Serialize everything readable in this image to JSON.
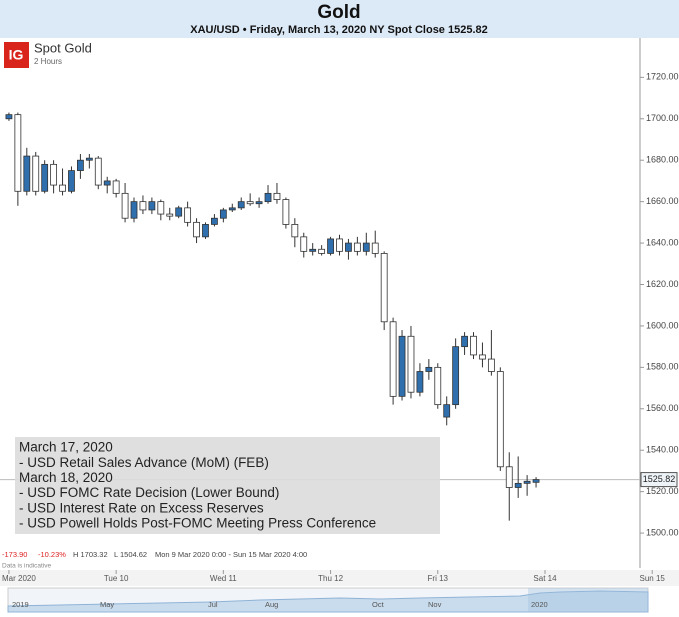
{
  "header": {
    "title": "Gold",
    "subtitle": "XAU/USD • Friday, March 13, 2020 NY Spot Close 1525.82"
  },
  "chart_data": {
    "type": "candlestick",
    "title": "Spot Gold",
    "subtitle": "2 Hours",
    "logo": "IG",
    "x": [
      0,
      2,
      4,
      6,
      8,
      10,
      12,
      14,
      16,
      18,
      20,
      22,
      24,
      26,
      28,
      30,
      32,
      34,
      36,
      38,
      40,
      42,
      44,
      46,
      48,
      50,
      52,
      54,
      56,
      58,
      60,
      62,
      64,
      66,
      68,
      70,
      72,
      74,
      76,
      78,
      80,
      82,
      84,
      86,
      88,
      90,
      92,
      94,
      96,
      98,
      100,
      102,
      104,
      106,
      108,
      110,
      112,
      114,
      116,
      118
    ],
    "open": [
      1700,
      1702,
      1665,
      1682,
      1665,
      1678,
      1668,
      1665,
      1675,
      1680,
      1681,
      1668,
      1670,
      1664,
      1652,
      1660,
      1656,
      1660,
      1654,
      1653,
      1657,
      1650,
      1643,
      1649,
      1652,
      1656,
      1657,
      1660,
      1659,
      1660,
      1664,
      1661,
      1649,
      1643,
      1636,
      1637,
      1635,
      1642,
      1636,
      1640,
      1636,
      1640,
      1635,
      1602,
      1566,
      1595,
      1568,
      1578,
      1580,
      1556,
      1562,
      1590,
      1595,
      1586,
      1584,
      1578,
      1532,
      1522,
      1524,
      1524.5
    ],
    "high": [
      1703,
      1703,
      1686,
      1684,
      1680,
      1680,
      1676,
      1677,
      1683,
      1683,
      1682,
      1672,
      1671,
      1669,
      1662,
      1663,
      1662,
      1661,
      1657,
      1658,
      1660,
      1652,
      1650,
      1654,
      1657,
      1659,
      1662,
      1664,
      1662,
      1668,
      1669,
      1662,
      1652,
      1645,
      1640,
      1639,
      1643,
      1644,
      1642,
      1643,
      1645,
      1646,
      1636,
      1604,
      1598,
      1600,
      1582,
      1584,
      1582,
      1566,
      1594,
      1597,
      1597,
      1592,
      1598,
      1580,
      1539,
      1537,
      1528,
      1527
    ],
    "low": [
      1699,
      1658,
      1663,
      1663,
      1664,
      1664,
      1663,
      1664,
      1671,
      1676,
      1666,
      1664,
      1662,
      1650,
      1650,
      1654,
      1654,
      1651,
      1651,
      1652,
      1648,
      1640,
      1642,
      1648,
      1650,
      1655,
      1656,
      1658,
      1657,
      1659,
      1659,
      1647,
      1638,
      1633,
      1634,
      1634,
      1634,
      1634,
      1632,
      1634,
      1634,
      1633,
      1598,
      1562,
      1564,
      1565,
      1566,
      1574,
      1560,
      1552,
      1560,
      1586,
      1584,
      1580,
      1576,
      1530,
      1506,
      1517,
      1518,
      1522
    ],
    "close": [
      1702,
      1665,
      1682,
      1665,
      1678,
      1668,
      1665,
      1675,
      1680,
      1681,
      1668,
      1670,
      1664,
      1652,
      1660,
      1656,
      1660,
      1654,
      1653,
      1657,
      1650,
      1643,
      1649,
      1652,
      1656,
      1657,
      1660,
      1659,
      1660,
      1664,
      1661,
      1649,
      1643,
      1636,
      1637,
      1635,
      1642,
      1636,
      1640,
      1636,
      1640,
      1635,
      1602,
      1566,
      1595,
      1568,
      1578,
      1580,
      1562,
      1562,
      1590,
      1595,
      1586,
      1584,
      1578,
      1532,
      1522,
      1524,
      1525,
      1525.82
    ],
    "up_color": "#2f6fad",
    "down_color": "#ffffff",
    "xlim": [
      -2,
      150
    ],
    "xticks": [
      {
        "value": 0,
        "label": "Mar 2020"
      },
      {
        "value": 24,
        "label": "Tue 10"
      },
      {
        "value": 48,
        "label": "Wed 11"
      },
      {
        "value": 72,
        "label": "Thu 12"
      },
      {
        "value": 96,
        "label": "Fri 13"
      },
      {
        "value": 120,
        "label": "Sat 14"
      },
      {
        "value": 144,
        "label": "Sun 15"
      }
    ],
    "ylim": [
      1487,
      1739
    ],
    "yticks": [
      {
        "value": 1500,
        "label": "1500.00"
      },
      {
        "value": 1520,
        "label": "1520.00"
      },
      {
        "value": 1540,
        "label": "1540.00"
      },
      {
        "value": 1560,
        "label": "1560.00"
      },
      {
        "value": 1580,
        "label": "1580.00"
      },
      {
        "value": 1600,
        "label": "1600.00"
      },
      {
        "value": 1620,
        "label": "1620.00"
      },
      {
        "value": 1640,
        "label": "1640.00"
      },
      {
        "value": 1660,
        "label": "1660.00"
      },
      {
        "value": 1680,
        "label": "1680.00"
      },
      {
        "value": 1700,
        "label": "1700.00"
      },
      {
        "value": 1720,
        "label": "1720.00"
      }
    ],
    "last_price": 1525.82,
    "stats": [
      "-173.90",
      "-10.23%",
      "H 1703.32",
      "L 1504.62",
      "Mon 9 Mar 2020 0:00 - Sun 15 Mar 2020 4:00"
    ],
    "note": "Data is indicative",
    "annotation": [
      "March 17, 2020",
      "- USD Retail Sales Advance (MoM) (FEB)",
      "March 18, 2020",
      "- USD FOMC Rate Decision (Lower Bound)",
      "- USD Interest Rate on Excess Reserves",
      "- USD Powell Holds Post-FOMC Meeting Press Conference"
    ],
    "navigator_labels": [
      "2019",
      "May",
      "Jul",
      "Aug",
      "Oct",
      "Nov",
      "2020"
    ]
  }
}
